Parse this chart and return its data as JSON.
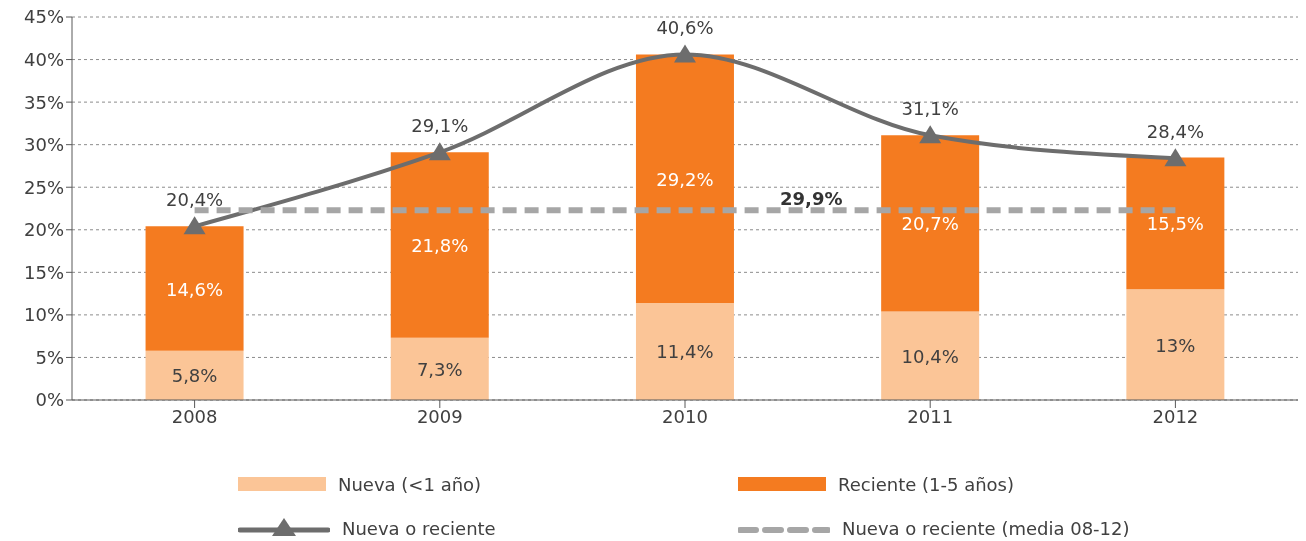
{
  "chart_data": {
    "type": "bar",
    "stacked": true,
    "categories": [
      "2008",
      "2009",
      "2010",
      "2011",
      "2012"
    ],
    "series": [
      {
        "name": "Nueva (<1 año)",
        "color": "#fbc597",
        "values": [
          5.8,
          7.3,
          11.4,
          10.4,
          13
        ],
        "value_labels": [
          "5,8%",
          "7,3%",
          "11,4%",
          "10,4%",
          "13%"
        ]
      },
      {
        "name": "Reciente (1-5 años)",
        "color": "#f47b20",
        "values": [
          14.6,
          21.8,
          29.2,
          20.7,
          15.5
        ],
        "value_labels": [
          "14,6%",
          "21,8%",
          "29,2%",
          "20,7%",
          "15,5%"
        ]
      },
      {
        "type": "line",
        "name": "Nueva o reciente",
        "color": "#6d6d6d",
        "marker": "triangle",
        "line_style": "solid",
        "values": [
          20.4,
          29.1,
          40.6,
          31.1,
          28.4
        ],
        "value_labels": [
          "20,4%",
          "29,1%",
          "40,6%",
          "31,1%",
          "28,4%"
        ]
      },
      {
        "type": "line",
        "name": "Nueva o reciente (media 08-12)",
        "color": "#a6a6a6",
        "marker": "none",
        "line_style": "dashed",
        "values": [
          22.3,
          22.3,
          22.3,
          22.3,
          22.3
        ]
      }
    ],
    "annotations": [
      "29,9%"
    ],
    "ylim": [
      0,
      45
    ],
    "yticks": [
      {
        "value": 0,
        "label": "0%"
      },
      {
        "value": 5,
        "label": "5%"
      },
      {
        "value": 10,
        "label": "10%"
      },
      {
        "value": 15,
        "label": "15%"
      },
      {
        "value": 20,
        "label": "20%"
      },
      {
        "value": 25,
        "label": "25%"
      },
      {
        "value": 30,
        "label": "30%"
      },
      {
        "value": 35,
        "label": "35%"
      },
      {
        "value": 40,
        "label": "40%"
      },
      {
        "value": 45,
        "label": "45%"
      }
    ],
    "grid": "y",
    "legend": "bottom"
  }
}
